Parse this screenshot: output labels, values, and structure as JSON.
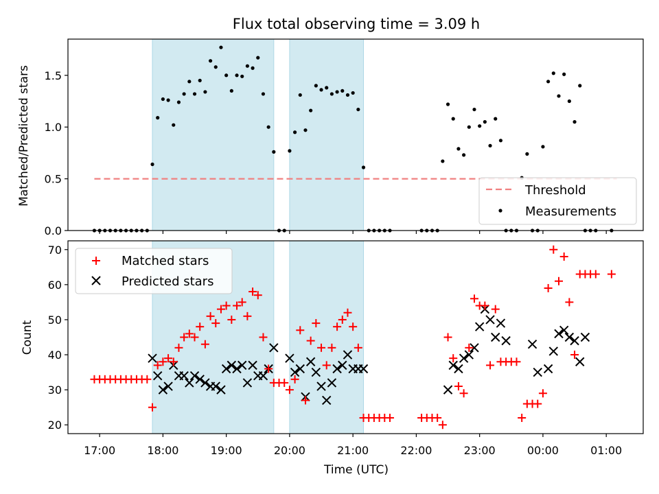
{
  "chart_data": [
    {
      "type": "scatter",
      "title": "Flux total observing time = 3.09 h",
      "xlabel": "",
      "ylabel": "Matched/Predicted stars",
      "xlim": [
        "16:30",
        "01:35"
      ],
      "ylim": [
        0,
        1.85
      ],
      "yticks": [
        "0.0",
        "0.5",
        "1.0",
        "1.5"
      ],
      "grid": false,
      "legend_position": "lower-right",
      "shaded_intervals": [
        [
          "17:50",
          "19:45"
        ],
        [
          "20:00",
          "21:10"
        ]
      ],
      "shade_color": "#add8e6",
      "threshold": {
        "name": "Threshold",
        "value": 0.5,
        "x_range": [
          "16:55",
          "01:10"
        ],
        "color": "#f08080"
      },
      "series": [
        {
          "name": "Measurements",
          "color": "#000000",
          "x": [
            "16:55",
            "17:00",
            "17:05",
            "17:10",
            "17:15",
            "17:20",
            "17:25",
            "17:30",
            "17:35",
            "17:40",
            "17:45",
            "17:50",
            "17:55",
            "18:00",
            "18:05",
            "18:10",
            "18:15",
            "18:20",
            "18:25",
            "18:30",
            "18:35",
            "18:40",
            "18:45",
            "18:50",
            "18:55",
            "19:00",
            "19:05",
            "19:10",
            "19:15",
            "19:20",
            "19:25",
            "19:30",
            "19:35",
            "19:40",
            "19:45",
            "19:50",
            "19:55",
            "20:00",
            "20:05",
            "20:10",
            "20:15",
            "20:20",
            "20:25",
            "20:30",
            "20:35",
            "20:40",
            "20:45",
            "20:50",
            "20:55",
            "21:00",
            "21:05",
            "21:10",
            "21:15",
            "21:20",
            "21:25",
            "21:30",
            "21:35",
            "22:05",
            "22:10",
            "22:15",
            "22:20",
            "22:25",
            "22:30",
            "22:35",
            "22:40",
            "22:45",
            "22:50",
            "22:55",
            "23:00",
            "23:05",
            "23:10",
            "23:15",
            "23:20",
            "23:25",
            "23:30",
            "23:35",
            "23:40",
            "23:45",
            "23:50",
            "23:55",
            "00:00",
            "00:05",
            "00:10",
            "00:15",
            "00:20",
            "00:25",
            "00:30",
            "00:35",
            "00:40",
            "00:45",
            "00:50",
            "01:05"
          ],
          "y": [
            0.0,
            0.0,
            0.0,
            0.0,
            0.0,
            0.0,
            0.0,
            0.0,
            0.0,
            0.0,
            0.0,
            0.64,
            1.09,
            1.27,
            1.26,
            1.02,
            1.24,
            1.32,
            1.44,
            1.32,
            1.45,
            1.34,
            1.64,
            1.58,
            1.77,
            1.5,
            1.35,
            1.5,
            1.49,
            1.59,
            1.57,
            1.67,
            1.32,
            1.0,
            0.76,
            0.0,
            0.0,
            0.77,
            0.95,
            1.31,
            0.97,
            1.16,
            1.4,
            1.36,
            1.38,
            1.32,
            1.34,
            1.35,
            1.31,
            1.33,
            1.17,
            0.61,
            0.0,
            0.0,
            0.0,
            0.0,
            0.0,
            0.0,
            0.0,
            0.0,
            0.0,
            0.67,
            1.22,
            1.08,
            0.79,
            0.73,
            1.0,
            1.17,
            1.01,
            1.05,
            0.82,
            1.08,
            0.87,
            0.0,
            0.0,
            0.0,
            0.51,
            0.74,
            0.0,
            0.0,
            0.81,
            1.44,
            1.52,
            1.3,
            1.51,
            1.25,
            1.05,
            1.4,
            0.0,
            0.0,
            0.0,
            0.0
          ]
        }
      ]
    },
    {
      "type": "scatter",
      "title": "",
      "xlabel": "Time (UTC)",
      "ylabel": "Count",
      "xlim": [
        "16:30",
        "01:35"
      ],
      "ylim": [
        17.5,
        72.5
      ],
      "xticks": [
        "17:00",
        "18:00",
        "19:00",
        "20:00",
        "21:00",
        "22:00",
        "23:00",
        "00:00",
        "01:00"
      ],
      "yticks": [
        "20",
        "30",
        "40",
        "50",
        "60",
        "70"
      ],
      "grid": false,
      "legend_position": "upper-left",
      "shaded_intervals": [
        [
          "17:50",
          "19:45"
        ],
        [
          "20:00",
          "21:10"
        ]
      ],
      "shade_color": "#add8e6",
      "series": [
        {
          "name": "Matched stars",
          "marker": "plus",
          "color": "#ff0000",
          "x": [
            "16:55",
            "17:00",
            "17:05",
            "17:10",
            "17:15",
            "17:20",
            "17:25",
            "17:30",
            "17:35",
            "17:40",
            "17:45",
            "17:50",
            "17:55",
            "18:00",
            "18:05",
            "18:10",
            "18:15",
            "18:20",
            "18:25",
            "18:30",
            "18:35",
            "18:40",
            "18:45",
            "18:50",
            "18:55",
            "19:00",
            "19:05",
            "19:10",
            "19:15",
            "19:20",
            "19:25",
            "19:30",
            "19:35",
            "19:40",
            "19:45",
            "19:50",
            "19:55",
            "20:00",
            "20:05",
            "20:10",
            "20:15",
            "20:20",
            "20:25",
            "20:30",
            "20:35",
            "20:40",
            "20:45",
            "20:50",
            "20:55",
            "21:00",
            "21:05",
            "21:10",
            "21:15",
            "21:20",
            "21:25",
            "21:30",
            "21:35",
            "22:05",
            "22:10",
            "22:15",
            "22:20",
            "22:25",
            "22:30",
            "22:35",
            "22:40",
            "22:45",
            "22:50",
            "22:55",
            "23:00",
            "23:05",
            "23:10",
            "23:15",
            "23:20",
            "23:25",
            "23:30",
            "23:35",
            "23:40",
            "23:45",
            "23:50",
            "23:55",
            "00:00",
            "00:05",
            "00:10",
            "00:15",
            "00:20",
            "00:25",
            "00:30",
            "00:35",
            "00:40",
            "00:45",
            "00:50",
            "01:05"
          ],
          "y": [
            33,
            33,
            33,
            33,
            33,
            33,
            33,
            33,
            33,
            33,
            33,
            25,
            37,
            38,
            39,
            38,
            42,
            45,
            46,
            45,
            48,
            43,
            51,
            49,
            53,
            54,
            50,
            54,
            55,
            51,
            58,
            57,
            45,
            36,
            32,
            32,
            32,
            30,
            33,
            47,
            27,
            44,
            49,
            42,
            37,
            42,
            48,
            50,
            52,
            48,
            42,
            22,
            22,
            22,
            22,
            22,
            22,
            22,
            22,
            22,
            22,
            20,
            45,
            39,
            31,
            29,
            42,
            56,
            54,
            54,
            37,
            53,
            38,
            38,
            38,
            38,
            22,
            26,
            26,
            26,
            29,
            59,
            70,
            61,
            68,
            55,
            40,
            63,
            63,
            63,
            63,
            63
          ]
        },
        {
          "name": "Predicted stars",
          "marker": "x",
          "color": "#000000",
          "x": [
            "17:50",
            "17:55",
            "18:00",
            "18:05",
            "18:10",
            "18:15",
            "18:20",
            "18:25",
            "18:30",
            "18:35",
            "18:40",
            "18:45",
            "18:50",
            "18:55",
            "19:00",
            "19:05",
            "19:10",
            "19:15",
            "19:20",
            "19:25",
            "19:30",
            "19:35",
            "19:40",
            "19:45",
            "20:00",
            "20:05",
            "20:10",
            "20:15",
            "20:20",
            "20:25",
            "20:30",
            "20:35",
            "20:40",
            "20:45",
            "20:50",
            "20:55",
            "21:00",
            "21:05",
            "21:10",
            "22:30",
            "22:35",
            "22:40",
            "22:45",
            "22:50",
            "22:55",
            "23:00",
            "23:05",
            "23:10",
            "23:15",
            "23:20",
            "23:25",
            "23:50",
            "23:55",
            "00:05",
            "00:10",
            "00:15",
            "00:20",
            "00:25",
            "00:30",
            "00:35",
            "00:40"
          ],
          "y": [
            39,
            34,
            30,
            31,
            37,
            34,
            34,
            32,
            34,
            33,
            32,
            31,
            31,
            30,
            36,
            37,
            36,
            37,
            32,
            37,
            34,
            34,
            36,
            42,
            39,
            35,
            36,
            28,
            38,
            35,
            31,
            27,
            32,
            36,
            37,
            40,
            36,
            36,
            36,
            30,
            37,
            36,
            39,
            40,
            42,
            48,
            53,
            50,
            45,
            49,
            44,
            43,
            35,
            36,
            41,
            46,
            47,
            45,
            44,
            38,
            45
          ]
        }
      ]
    }
  ]
}
